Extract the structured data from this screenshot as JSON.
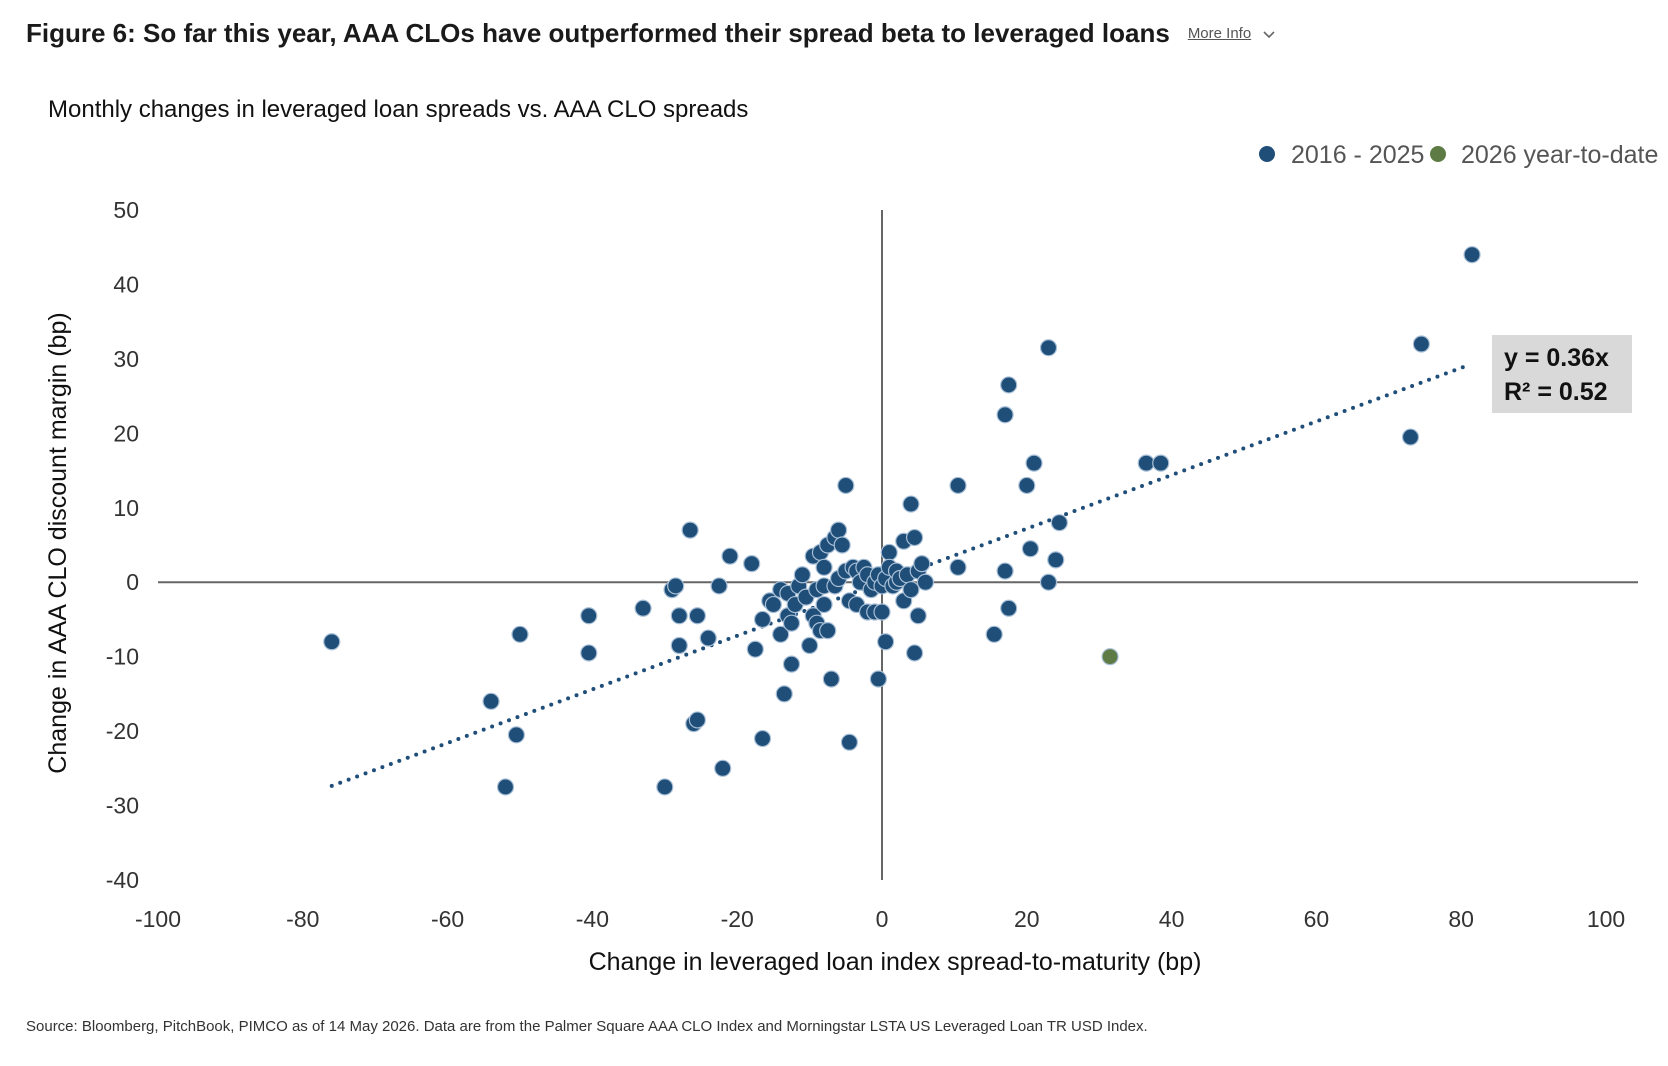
{
  "header": {
    "title": "Figure 6: So far this year, AAA CLOs have outperformed their spread beta to leveraged loans",
    "more_info_label": "More Info"
  },
  "source_note": "Source: Bloomberg, PitchBook, PIMCO as of 14 May 2026. Data are from the Palmer Square AAA CLO Index and Morningstar LSTA US Leveraged Loan TR USD Index.",
  "colors": {
    "series_2016_2025": "#1f4e79",
    "series_2026": "#5e7b45",
    "axis": "#666666",
    "equation_box": "#d9d9d9"
  },
  "icons": {
    "more_info": "chevron-down-icon"
  },
  "chart_data": {
    "type": "scatter",
    "title": "Monthly changes in leveraged loan spreads vs. AAA CLO spreads",
    "xlabel": "Change in leveraged loan index spread-to-maturity (bp)",
    "ylabel": "Change in AAA CLO discount margin (bp)",
    "xlim": [
      -100,
      100
    ],
    "ylim": [
      -40,
      50
    ],
    "xticks": [
      "-100",
      "-80",
      "-60",
      "-40",
      "-20",
      "0",
      "20",
      "40",
      "60",
      "80",
      "100"
    ],
    "yticks": [
      "50",
      "40",
      "30",
      "20",
      "10",
      "0",
      "-10",
      "-20",
      "-30",
      "-40"
    ],
    "grid": false,
    "legend_position": "top-right",
    "trendline": {
      "slope": 0.36,
      "x_range": [
        -76,
        81
      ],
      "style": "dotted"
    },
    "annotation": {
      "line1": "y = 0.36x",
      "line2": "R² = 0.52"
    },
    "series": [
      {
        "name": "2016 - 2025",
        "points": [
          [
            -76,
            -8
          ],
          [
            -54,
            -16
          ],
          [
            -52,
            -27.5
          ],
          [
            -50.5,
            -20.5
          ],
          [
            -50,
            -7
          ],
          [
            -40.5,
            -4.5
          ],
          [
            -40.5,
            -9.5
          ],
          [
            -33,
            -3.5
          ],
          [
            -30,
            -27.5
          ],
          [
            -29,
            -1
          ],
          [
            -28.5,
            -0.5
          ],
          [
            -28,
            -4.5
          ],
          [
            -28,
            -8.5
          ],
          [
            -26.5,
            7
          ],
          [
            -26,
            -19
          ],
          [
            -25.5,
            -18.5
          ],
          [
            -25.5,
            -4.5
          ],
          [
            -24,
            -7.5
          ],
          [
            -22.5,
            -0.5
          ],
          [
            -22,
            -25
          ],
          [
            -21,
            3.5
          ],
          [
            -18,
            2.5
          ],
          [
            -17.5,
            -9
          ],
          [
            -16.5,
            -21
          ],
          [
            -16.5,
            -5
          ],
          [
            -15.5,
            -2.5
          ],
          [
            -15,
            -3
          ],
          [
            -14,
            -7
          ],
          [
            -14,
            -1
          ],
          [
            -13.5,
            -15
          ],
          [
            -13,
            -4.5
          ],
          [
            -13,
            -1.5
          ],
          [
            -12.5,
            -5.5
          ],
          [
            -12.5,
            -11
          ],
          [
            -12,
            -3
          ],
          [
            -11.5,
            -0.5
          ],
          [
            -11,
            1
          ],
          [
            -10.5,
            -2
          ],
          [
            -10,
            -8.5
          ],
          [
            -9.5,
            3.5
          ],
          [
            -9.5,
            -4.5
          ],
          [
            -9,
            -1
          ],
          [
            -9,
            -5.5
          ],
          [
            -8.5,
            4
          ],
          [
            -8.5,
            -6.5
          ],
          [
            -8,
            2
          ],
          [
            -8,
            -0.5
          ],
          [
            -8,
            -3
          ],
          [
            -7.5,
            -6.5
          ],
          [
            -7.5,
            5
          ],
          [
            -7,
            -13
          ],
          [
            -6.5,
            -0.5
          ],
          [
            -6.5,
            6
          ],
          [
            -6,
            7
          ],
          [
            -6,
            0.5
          ],
          [
            -5.5,
            5
          ],
          [
            -5,
            1.5
          ],
          [
            -5,
            13
          ],
          [
            -4.5,
            -21.5
          ],
          [
            -4.5,
            -2.5
          ],
          [
            -4,
            2
          ],
          [
            -3.5,
            -3
          ],
          [
            -3.5,
            1.5
          ],
          [
            -3,
            0
          ],
          [
            -2.5,
            2
          ],
          [
            -2,
            1
          ],
          [
            -2,
            -4
          ],
          [
            -1.5,
            -1
          ],
          [
            -1,
            -4
          ],
          [
            -1,
            0
          ],
          [
            -0.5,
            -13
          ],
          [
            -0.5,
            1
          ],
          [
            0,
            -0.5
          ],
          [
            0,
            -4
          ],
          [
            0.5,
            -8
          ],
          [
            0.5,
            0.5
          ],
          [
            1,
            4
          ],
          [
            1,
            2
          ],
          [
            1.5,
            -0.5
          ],
          [
            2,
            0
          ],
          [
            2,
            1.5
          ],
          [
            2.5,
            0.5
          ],
          [
            3,
            5.5
          ],
          [
            3,
            -2.5
          ],
          [
            3.5,
            1
          ],
          [
            4,
            10.5
          ],
          [
            4,
            -1
          ],
          [
            4.5,
            6
          ],
          [
            4.5,
            -9.5
          ],
          [
            5,
            1.5
          ],
          [
            5,
            -4.5
          ],
          [
            5.5,
            2.5
          ],
          [
            6,
            0
          ],
          [
            10.5,
            2
          ],
          [
            10.5,
            13
          ],
          [
            15.5,
            -7
          ],
          [
            17,
            1.5
          ],
          [
            17,
            22.5
          ],
          [
            17.5,
            26.5
          ],
          [
            17.5,
            -3.5
          ],
          [
            20,
            13
          ],
          [
            20.5,
            4.5
          ],
          [
            21,
            16
          ],
          [
            23,
            31.5
          ],
          [
            23,
            0
          ],
          [
            24,
            3
          ],
          [
            24.5,
            8
          ],
          [
            36.5,
            16
          ],
          [
            38.5,
            16
          ],
          [
            73,
            19.5
          ],
          [
            74.5,
            32
          ],
          [
            81.5,
            44
          ]
        ]
      },
      {
        "name": "2026 year-to-date",
        "points": [
          [
            31.5,
            -10
          ]
        ]
      }
    ]
  }
}
